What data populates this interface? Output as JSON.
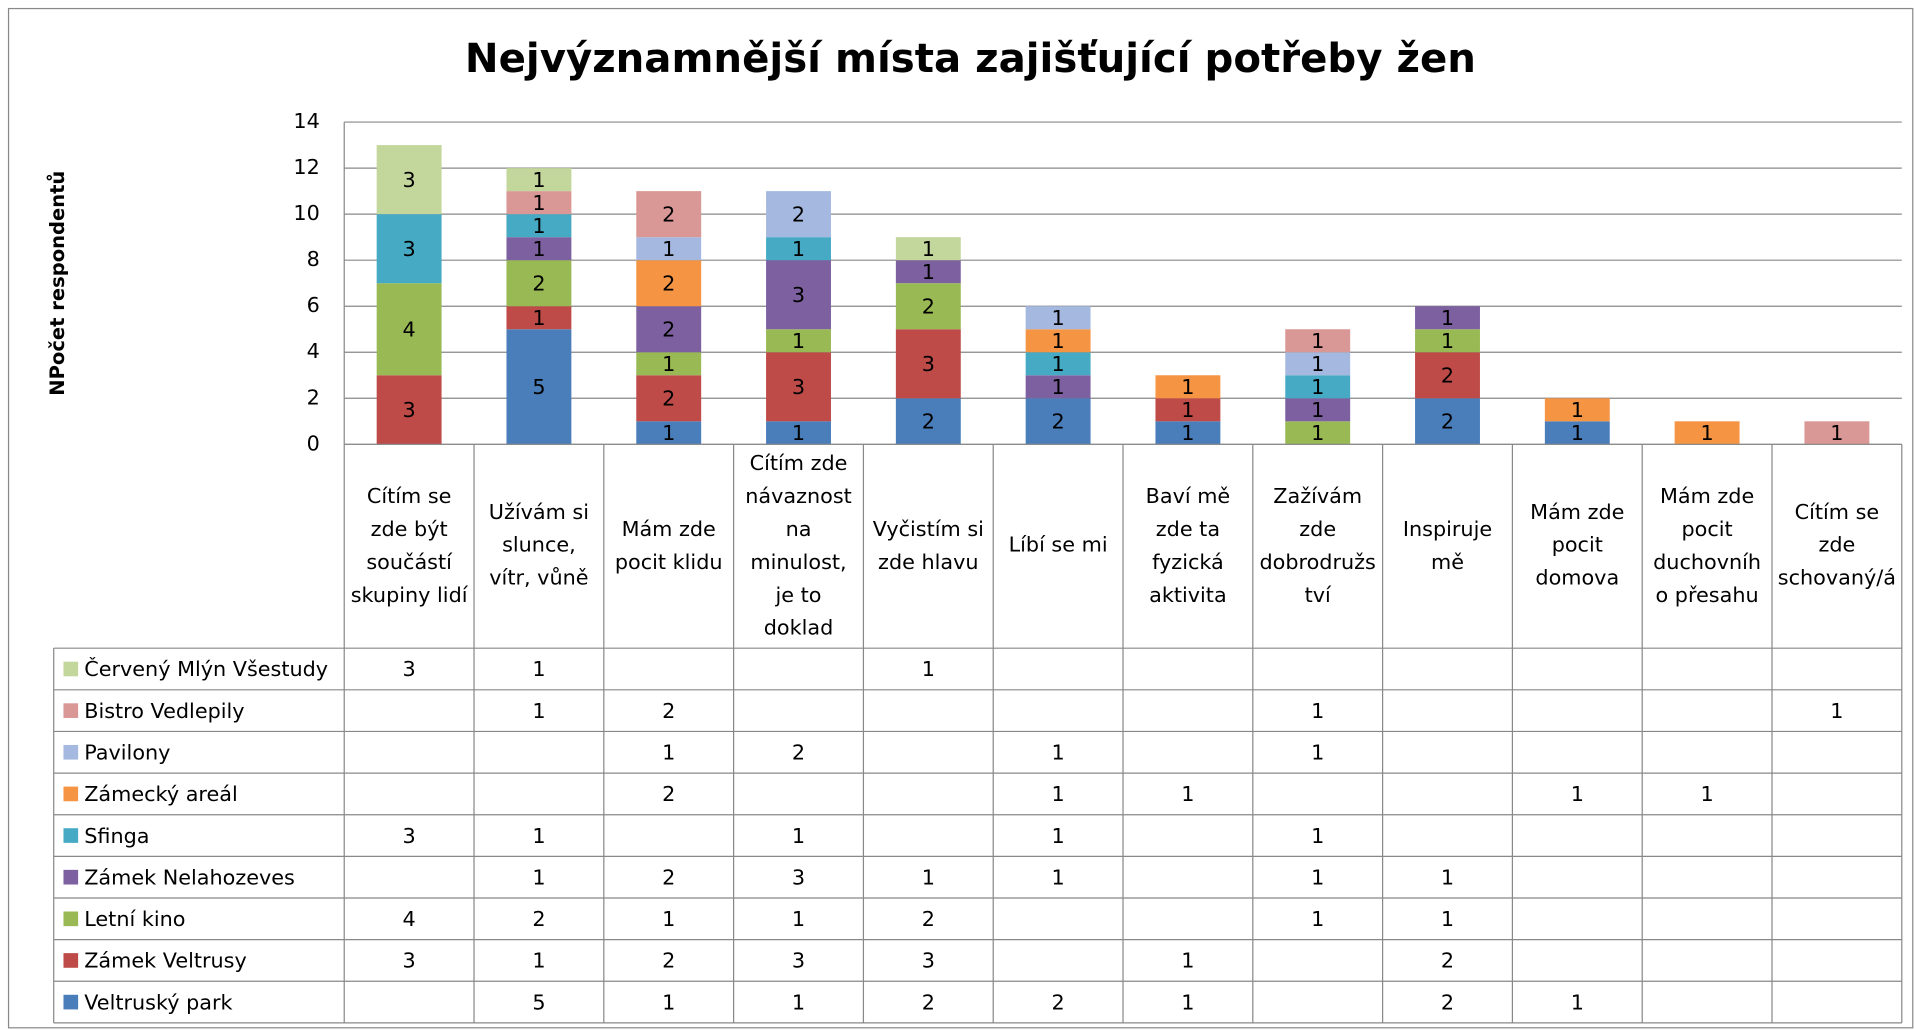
{
  "chart_data": {
    "type": "bar",
    "stacked": true,
    "title": "Nejvýznamnější místa zajišťující potřeby žen",
    "y_label": "NPočet  respondentů",
    "categories": [
      "Cítím se zde být součástí skupiny lidí",
      "Užívám si slunce, vítr, vůně",
      "Mám zde pocit klidu",
      "Cítím zde návaznost na minulost, je to doklad",
      "Vyčistím si zde hlavu",
      "Líbí se mi",
      "Baví mě zde ta fyzická aktivita",
      "Zažívám zde dobrodružství",
      "Inspiruje mě",
      "Mám zde pocit domova",
      "Mám zde pocit duchovního přesahu",
      "Cítím se zde schovaný/á"
    ],
    "series": [
      {
        "name": "Veltruský park",
        "color": "#4a7ebb",
        "values": [
          null,
          5,
          1,
          1,
          2,
          2,
          1,
          null,
          2,
          1,
          null,
          null
        ]
      },
      {
        "name": "Zámek Veltrusy",
        "color": "#be4b48",
        "values": [
          3,
          1,
          2,
          3,
          3,
          null,
          1,
          null,
          2,
          null,
          null,
          null
        ]
      },
      {
        "name": "Letní kino",
        "color": "#98b954",
        "values": [
          4,
          2,
          1,
          1,
          2,
          null,
          null,
          1,
          1,
          null,
          null,
          null
        ]
      },
      {
        "name": "Zámek Nelahozeves",
        "color": "#7d60a0",
        "values": [
          null,
          1,
          2,
          3,
          1,
          1,
          null,
          1,
          1,
          null,
          null,
          null
        ]
      },
      {
        "name": "Sfinga",
        "color": "#46aac5",
        "values": [
          3,
          1,
          null,
          1,
          null,
          1,
          null,
          1,
          null,
          null,
          null,
          null
        ]
      },
      {
        "name": "Zámecký areál",
        "color": "#f59443",
        "values": [
          null,
          null,
          2,
          null,
          null,
          1,
          1,
          null,
          null,
          1,
          1,
          null
        ]
      },
      {
        "name": "Pavilony",
        "color": "#a5b9e0",
        "values": [
          null,
          null,
          1,
          2,
          null,
          1,
          null,
          1,
          null,
          null,
          null,
          null
        ]
      },
      {
        "name": "Bistro Vedlepily",
        "color": "#d99795",
        "values": [
          null,
          1,
          2,
          null,
          null,
          null,
          null,
          1,
          null,
          null,
          null,
          1
        ]
      },
      {
        "name": "Červený Mlýn Všestudy",
        "color": "#c3d69b",
        "values": [
          3,
          1,
          null,
          null,
          1,
          null,
          null,
          null,
          null,
          null,
          null,
          null
        ]
      }
    ],
    "ylim": [
      0,
      14
    ],
    "yticks": [
      0,
      2,
      4,
      6,
      8,
      10,
      12,
      14
    ],
    "grid": true,
    "legend": "table"
  }
}
